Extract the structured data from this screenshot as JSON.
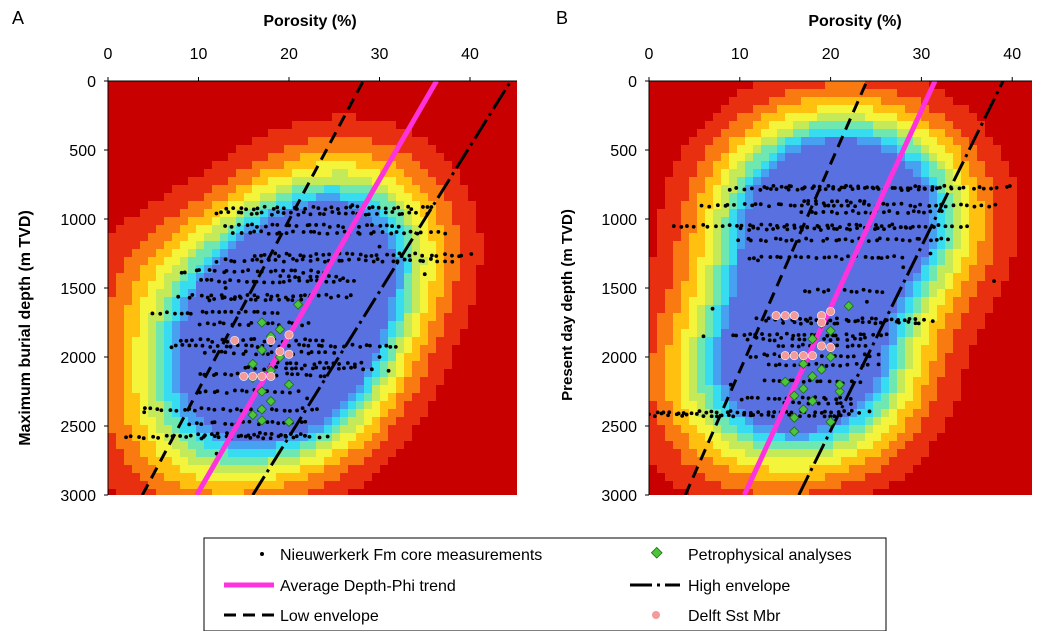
{
  "panels": [
    {
      "letter": "A",
      "xlabel": "Porosity (%)",
      "ylabel": "Maximum burial depth  (m TVD)",
      "xticks": [
        0,
        10,
        20,
        30,
        40
      ],
      "yticks": [
        0,
        500,
        1000,
        1500,
        2000,
        2500,
        3000
      ]
    },
    {
      "letter": "B",
      "xlabel": "Porosity (%)",
      "ylabel": "Present day depth (m TVD)",
      "xticks": [
        0,
        10,
        20,
        30,
        40
      ],
      "yticks": [
        0,
        500,
        1000,
        1500,
        2000,
        2500,
        3000
      ]
    }
  ],
  "legend": {
    "core": "Nieuwerkerk Fm core measurements",
    "petro": "Petrophysical analyses",
    "avg": "Average Depth-Phi trend",
    "high": "High envelope",
    "low": "Low envelope",
    "delft": "Delft Sst Mbr"
  },
  "colors": {
    "background": "#c80000",
    "trend": "#ff33dd",
    "envelope": "#000000",
    "core": "#000000",
    "petro": "#4cc53a",
    "delft": "#f59a9a",
    "heat": [
      "#c80000",
      "#e83010",
      "#f87a10",
      "#ffc010",
      "#f4f43a",
      "#c4ea5a",
      "#6ee8b0",
      "#38dcf0",
      "#48a0f0",
      "#5870e0"
    ]
  },
  "chart_data": [
    {
      "type": "scatter",
      "title": "",
      "xlabel": "Porosity (%)",
      "ylabel": "Maximum burial depth  (m TVD)",
      "xlim": [
        0,
        45
      ],
      "ylim": [
        3000,
        0
      ],
      "density_background": true,
      "density_centers": [
        {
          "x": 20,
          "y": 1750,
          "weight": 1.0
        },
        {
          "x": 19,
          "y": 2100,
          "weight": 0.85
        },
        {
          "x": 23,
          "y": 1350,
          "weight": 0.6
        },
        {
          "x": 28,
          "y": 1150,
          "weight": 0.45
        },
        {
          "x": 10,
          "y": 2450,
          "weight": 0.4
        },
        {
          "x": 8,
          "y": 1600,
          "weight": 0.25
        }
      ],
      "lines": [
        {
          "name": "Average Depth-Phi trend",
          "x": [
            9.8,
            36.3
          ],
          "y": [
            3000,
            0
          ]
        },
        {
          "name": "Low envelope",
          "x": [
            3.8,
            28.2
          ],
          "y": [
            3000,
            0
          ]
        },
        {
          "name": "High envelope",
          "x": [
            16.0,
            44.5
          ],
          "y": [
            3000,
            0
          ]
        }
      ],
      "core_rows": [
        {
          "y": 2580,
          "x": [
            2,
            24
          ]
        },
        {
          "y": 2560,
          "x": [
            10,
            22
          ]
        },
        {
          "y": 2480,
          "x": [
            9,
            22
          ]
        },
        {
          "y": 2380,
          "x": [
            4,
            23
          ]
        },
        {
          "y": 2250,
          "x": [
            10,
            21
          ]
        },
        {
          "y": 2130,
          "x": [
            10,
            24
          ]
        },
        {
          "y": 2080,
          "x": [
            15,
            29
          ]
        },
        {
          "y": 2050,
          "x": [
            18,
            28
          ]
        },
        {
          "y": 1970,
          "x": [
            11,
            25
          ]
        },
        {
          "y": 1920,
          "x": [
            7,
            32
          ]
        },
        {
          "y": 1880,
          "x": [
            8,
            24
          ]
        },
        {
          "y": 1760,
          "x": [
            10,
            22
          ]
        },
        {
          "y": 1680,
          "x": [
            5,
            19
          ]
        },
        {
          "y": 1580,
          "x": [
            11,
            22
          ]
        },
        {
          "y": 1560,
          "x": [
            8,
            27
          ]
        },
        {
          "y": 1450,
          "x": [
            10,
            27
          ]
        },
        {
          "y": 1420,
          "x": [
            19,
            26
          ]
        },
        {
          "y": 1380,
          "x": [
            8,
            24
          ]
        },
        {
          "y": 1300,
          "x": [
            12,
            38
          ]
        },
        {
          "y": 1260,
          "x": [
            16,
            40
          ]
        },
        {
          "y": 1100,
          "x": [
            14,
            37
          ]
        },
        {
          "y": 1050,
          "x": [
            13,
            32
          ]
        },
        {
          "y": 960,
          "x": [
            12,
            35
          ]
        },
        {
          "y": 920,
          "x": [
            13,
            36
          ]
        }
      ],
      "core_points": [
        {
          "x": 30,
          "y": 2000
        },
        {
          "x": 31,
          "y": 2100
        },
        {
          "x": 12,
          "y": 2700
        },
        {
          "x": 4,
          "y": 2400
        },
        {
          "x": 35,
          "y": 1400
        },
        {
          "x": 30,
          "y": 1200
        },
        {
          "x": 13,
          "y": 1500
        },
        {
          "x": 22,
          "y": 2300
        },
        {
          "x": 27,
          "y": 900
        }
      ],
      "petro_points": [
        {
          "x": 17,
          "y": 1750
        },
        {
          "x": 18,
          "y": 1850
        },
        {
          "x": 17,
          "y": 1950
        },
        {
          "x": 19,
          "y": 2000
        },
        {
          "x": 18,
          "y": 2100
        },
        {
          "x": 16,
          "y": 2150
        },
        {
          "x": 20,
          "y": 2200
        },
        {
          "x": 17,
          "y": 2250
        },
        {
          "x": 18,
          "y": 2320
        },
        {
          "x": 17,
          "y": 2380
        },
        {
          "x": 16,
          "y": 2420
        },
        {
          "x": 17,
          "y": 2460
        },
        {
          "x": 20,
          "y": 2470
        },
        {
          "x": 19,
          "y": 1800
        },
        {
          "x": 21,
          "y": 1620
        },
        {
          "x": 16,
          "y": 2050
        }
      ],
      "delft_points": [
        {
          "x": 14,
          "y": 1880
        },
        {
          "x": 18,
          "y": 1880
        },
        {
          "x": 20,
          "y": 1840
        },
        {
          "x": 19,
          "y": 1960
        },
        {
          "x": 20,
          "y": 1980
        },
        {
          "x": 15,
          "y": 2140
        },
        {
          "x": 16,
          "y": 2140
        },
        {
          "x": 17,
          "y": 2140
        },
        {
          "x": 18,
          "y": 2140
        }
      ]
    },
    {
      "type": "scatter",
      "title": "",
      "xlabel": "Porosity (%)",
      "ylabel": "Present day depth (m TVD)",
      "xlim": [
        0,
        43
      ],
      "ylim": [
        3000,
        0
      ],
      "density_background": true,
      "density_centers": [
        {
          "x": 21,
          "y": 950,
          "weight": 1.0
        },
        {
          "x": 19,
          "y": 2050,
          "weight": 1.0
        },
        {
          "x": 27,
          "y": 1000,
          "weight": 0.55
        },
        {
          "x": 15,
          "y": 1000,
          "weight": 0.45
        },
        {
          "x": 10,
          "y": 2300,
          "weight": 0.35
        },
        {
          "x": 14,
          "y": 1800,
          "weight": 0.4
        }
      ],
      "lines": [
        {
          "name": "Average Depth-Phi trend",
          "x": [
            10.5,
            31.5
          ],
          "y": [
            3000,
            0
          ]
        },
        {
          "name": "Low envelope",
          "x": [
            4.0,
            24.0
          ],
          "y": [
            3000,
            0
          ]
        },
        {
          "name": "High envelope",
          "x": [
            16.5,
            39.0
          ],
          "y": [
            3000,
            0
          ]
        }
      ],
      "core_rows": [
        {
          "y": 770,
          "x": [
            13,
            40
          ]
        },
        {
          "y": 780,
          "x": [
            9,
            32
          ]
        },
        {
          "y": 880,
          "x": [
            17,
            24
          ]
        },
        {
          "y": 900,
          "x": [
            6,
            38
          ]
        },
        {
          "y": 950,
          "x": [
            17,
            32
          ]
        },
        {
          "y": 1050,
          "x": [
            3,
            35
          ]
        },
        {
          "y": 1070,
          "x": [
            10,
            29
          ]
        },
        {
          "y": 1150,
          "x": [
            10,
            33
          ]
        },
        {
          "y": 1280,
          "x": [
            11,
            28
          ]
        },
        {
          "y": 1520,
          "x": [
            17,
            26
          ]
        },
        {
          "y": 1730,
          "x": [
            12,
            31
          ]
        },
        {
          "y": 1750,
          "x": [
            15,
            30
          ]
        },
        {
          "y": 1840,
          "x": [
            9,
            26
          ]
        },
        {
          "y": 1870,
          "x": [
            11,
            24
          ]
        },
        {
          "y": 1920,
          "x": [
            14,
            24
          ]
        },
        {
          "y": 1990,
          "x": [
            11,
            25
          ]
        },
        {
          "y": 2060,
          "x": [
            13,
            25
          ]
        },
        {
          "y": 2180,
          "x": [
            13,
            23
          ]
        },
        {
          "y": 2300,
          "x": [
            10,
            22
          ]
        },
        {
          "y": 2330,
          "x": [
            15,
            22
          ]
        },
        {
          "y": 2400,
          "x": [
            1,
            24
          ]
        },
        {
          "y": 2420,
          "x": [
            0,
            22
          ]
        }
      ],
      "core_points": [
        {
          "x": 38,
          "y": 1450
        },
        {
          "x": 7,
          "y": 1650
        },
        {
          "x": 12,
          "y": 1300
        },
        {
          "x": 28,
          "y": 1350
        },
        {
          "x": 31,
          "y": 1250
        },
        {
          "x": 24,
          "y": 1600
        },
        {
          "x": 9,
          "y": 2200
        },
        {
          "x": 6,
          "y": 1850
        }
      ],
      "petro_points": [
        {
          "x": 22,
          "y": 1630
        },
        {
          "x": 19,
          "y": 1760
        },
        {
          "x": 20,
          "y": 1810
        },
        {
          "x": 18,
          "y": 1870
        },
        {
          "x": 19,
          "y": 1920
        },
        {
          "x": 20,
          "y": 2000
        },
        {
          "x": 17,
          "y": 2050
        },
        {
          "x": 19,
          "y": 2090
        },
        {
          "x": 18,
          "y": 2140
        },
        {
          "x": 15,
          "y": 2180
        },
        {
          "x": 17,
          "y": 2230
        },
        {
          "x": 21,
          "y": 2250
        },
        {
          "x": 16,
          "y": 2280
        },
        {
          "x": 18,
          "y": 2320
        },
        {
          "x": 17,
          "y": 2380
        },
        {
          "x": 16,
          "y": 2440
        },
        {
          "x": 16,
          "y": 2540
        },
        {
          "x": 20,
          "y": 2470
        },
        {
          "x": 21,
          "y": 2200
        }
      ],
      "delft_points": [
        {
          "x": 14,
          "y": 1700
        },
        {
          "x": 15,
          "y": 1700
        },
        {
          "x": 16,
          "y": 1700
        },
        {
          "x": 20,
          "y": 1670
        },
        {
          "x": 19,
          "y": 1700
        },
        {
          "x": 19,
          "y": 1750
        },
        {
          "x": 16,
          "y": 1990
        },
        {
          "x": 17,
          "y": 1990
        },
        {
          "x": 18,
          "y": 1990
        },
        {
          "x": 15,
          "y": 1990
        },
        {
          "x": 19,
          "y": 1920
        },
        {
          "x": 20,
          "y": 1930
        }
      ]
    }
  ]
}
